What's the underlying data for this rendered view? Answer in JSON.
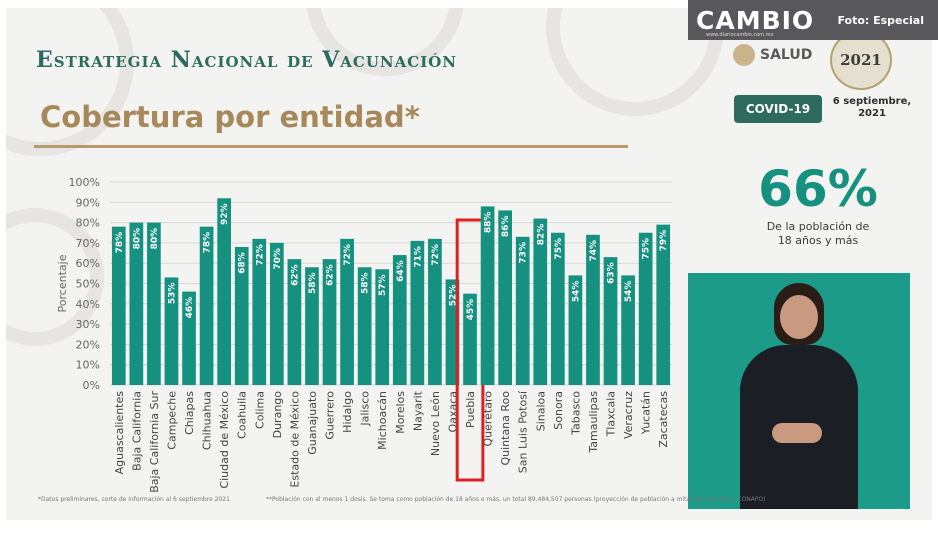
{
  "header": {
    "title": "Estrategia Nacional de Vacunación",
    "subtitle": "Cobertura por entidad*"
  },
  "branding": {
    "salud": "SALUD",
    "year": "2021",
    "covid_label": "COVID-19",
    "date": "6 septiembre, 2021"
  },
  "summary": {
    "big_percent": "66%",
    "note": "De la población de 18 años y más"
  },
  "footnotes": {
    "left": "*Datos preliminares, corte de información al 6 septiembre 2021",
    "right": "**Población con al menos 1 dosis. Se toma como población de 18 años o más, un total 89,484,507 personas (proyección de población a mitad de año 2021, CONAPO)"
  },
  "watermark": {
    "logo": "CAMBIO",
    "url": "www.diariocambio.com.mx",
    "credit": "Foto: Especial"
  },
  "colors": {
    "bar": "#16907f",
    "title_green": "#2d6b5e",
    "subtitle_gold": "#a7885a",
    "highlight": "#e02020"
  },
  "chart_data": {
    "type": "bar",
    "ylabel": "Porcentaje",
    "ylim": [
      0,
      100
    ],
    "yticks": [
      "0%",
      "10%",
      "20%",
      "30%",
      "40%",
      "50%",
      "60%",
      "70%",
      "80%",
      "90%",
      "100%"
    ],
    "grid": true,
    "categories": [
      "Aguascalientes",
      "Baja California",
      "Baja California Sur",
      "Campeche",
      "Chiapas",
      "Chihuahua",
      "Ciudad de México",
      "Coahuila",
      "Colima",
      "Durango",
      "Estado de México",
      "Guanajuato",
      "Guerrero",
      "Hidalgo",
      "Jalisco",
      "Michoacán",
      "Morelos",
      "Nayarit",
      "Nuevo León",
      "Oaxaca",
      "Puebla",
      "Querétaro",
      "Quintana Roo",
      "San Luis Potosí",
      "Sinaloa",
      "Sonora",
      "Tabasco",
      "Tamaulipas",
      "Tlaxcala",
      "Veracruz",
      "Yucatán",
      "Zacatecas"
    ],
    "values": [
      78,
      80,
      80,
      53,
      46,
      78,
      92,
      68,
      72,
      70,
      62,
      58,
      62,
      72,
      58,
      57,
      64,
      71,
      72,
      52,
      45,
      88,
      86,
      73,
      82,
      75,
      54,
      74,
      63,
      54,
      75,
      79
    ],
    "value_labels": [
      "78%",
      "80%",
      "80%",
      "53%",
      "46%",
      "78%",
      "92%",
      "68%",
      "72%",
      "70%",
      "62%",
      "58%",
      "62%",
      "72%",
      "58%",
      "57%",
      "64%",
      "71%",
      "72%",
      "52%",
      "45%",
      "88%",
      "86%",
      "73%",
      "82%",
      "75%",
      "54%",
      "74%",
      "63%",
      "54%",
      "75%",
      "79%"
    ],
    "highlighted_category": "Puebla"
  }
}
